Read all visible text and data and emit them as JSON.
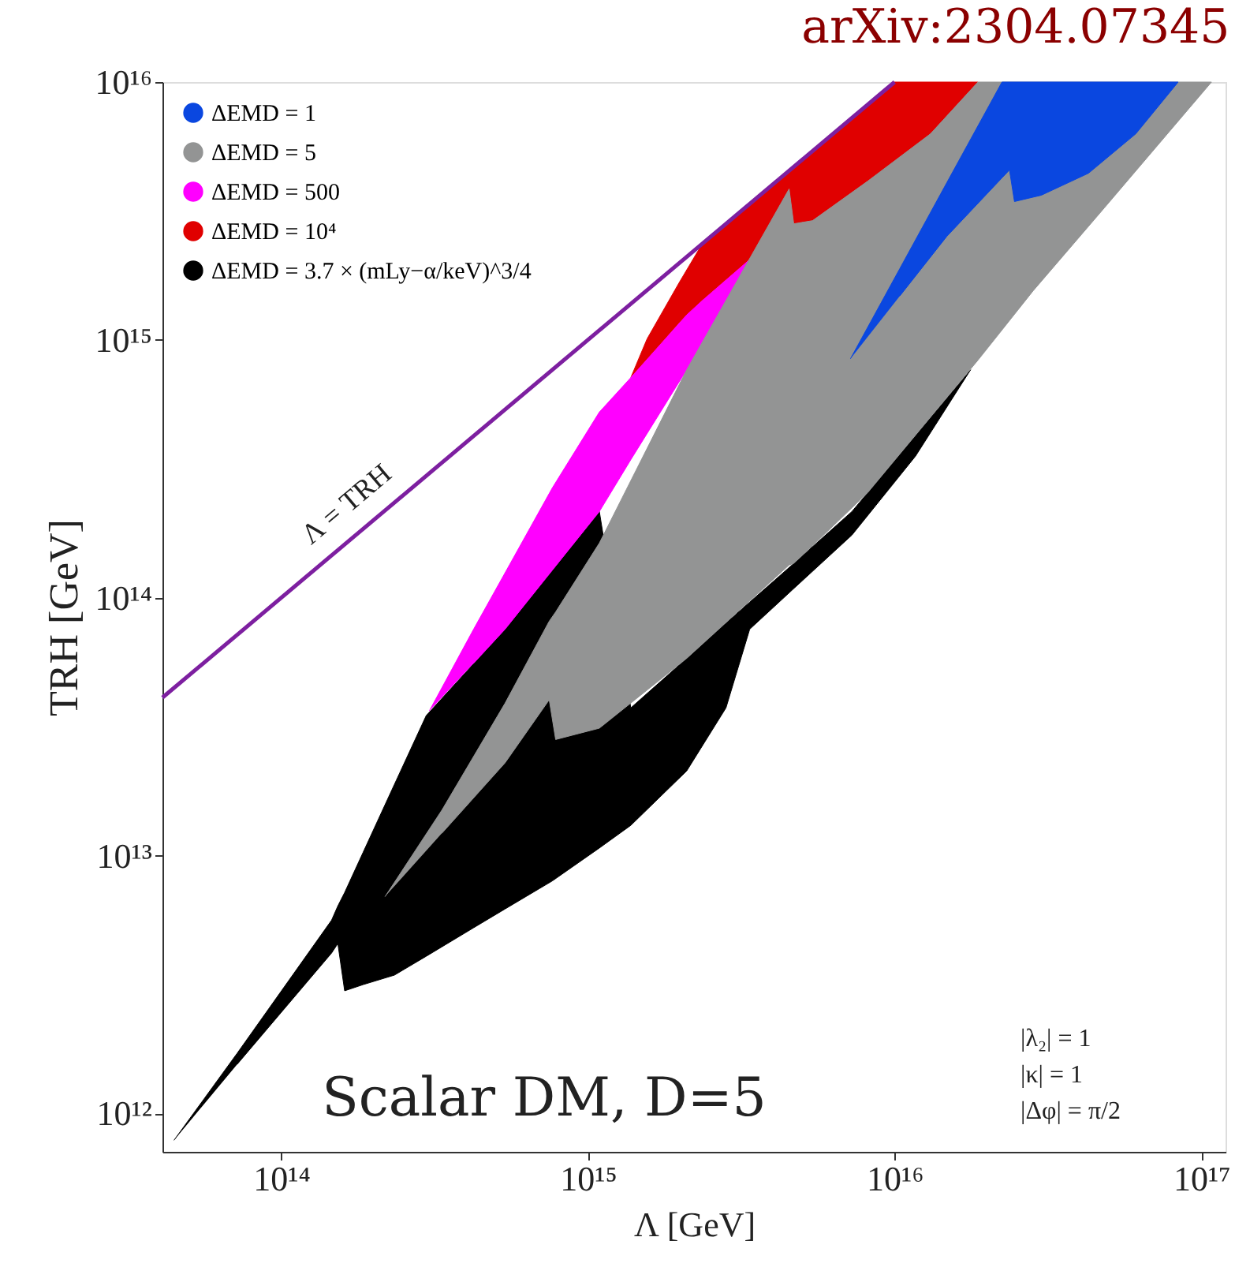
{
  "chart_data": {
    "type": "area",
    "title": "arXiv:2304.07345",
    "xlabel": "Λ [GeV]",
    "ylabel": "TRH [GeV]",
    "log": "xy",
    "grid": false,
    "legend": "top left",
    "xlim": [
      41000000000000.0,
      1.2e+17
    ],
    "ylim": [
      710000000000.0,
      1e+16
    ],
    "xticks": [
      {
        "value": 100000000000000.0,
        "label": "10¹⁴"
      },
      {
        "value": 1000000000000000.0,
        "label": "10¹⁵"
      },
      {
        "value": 1e+16,
        "label": "10¹⁶"
      },
      {
        "value": 1e+17,
        "label": "10¹⁷"
      }
    ],
    "yticks": [
      {
        "value": 1000000000000.0,
        "label": "10¹²"
      },
      {
        "value": 10000000000000.0,
        "label": "10¹³"
      },
      {
        "value": 100000000000000.0,
        "label": "10¹⁴"
      },
      {
        "value": 1000000000000000.0,
        "label": "10¹⁵"
      },
      {
        "value": 1e+16,
        "label": "10¹⁶"
      }
    ],
    "series": [
      {
        "name": "ΔEMD = 1",
        "color": "#0a47e0",
        "x": [
          7180000000000000.0,
          1.04e+16,
          1.48e+16,
          2.24e+16,
          8.41e+16,
          6.12e+16,
          4.29e+16,
          3.01e+16,
          2.46e+16,
          2.37e+16,
          2.24e+16,
          1.48e+16,
          1.04e+16
        ],
        "values": [
          845000000000000.0,
          1890000000000000.0,
          4070000000000000.0,
          1e+16,
          1e+16,
          6300000000000000.0,
          4430000000000000.0,
          3640000000000000.0,
          3440000000000000.0,
          4560000000000000.0,
          4250000000000000.0,
          2520000000000000.0,
          1480000000000000.0
        ]
      },
      {
        "name": "ΔEMD = 5",
        "color": "#939494",
        "x": [
          218000000000000.0,
          334000000000000.0,
          537000000000000.0,
          748000000000000.0,
          785000000000000.0,
          1090000000000000.0,
          2100000000000000.0,
          4530000000000000.0,
          4690000000000000.0,
          5400000000000000.0,
          8180000000000000.0,
          1.31e+16,
          1.87e+16,
          1.08e+17,
          4.83e+16,
          2.83e+16,
          1.87e+16,
          1.31e+16,
          8180000000000000.0,
          5400000000000000.0,
          4690000000000000.0,
          4530000000000000.0,
          2100000000000000.0,
          1090000000000000.0,
          785000000000000.0,
          748000000000000.0,
          537000000000000.0,
          334000000000000.0
        ],
        "values": [
          6930000000000.0,
          15000000000000.0,
          39000000000000.0,
          81100000000000.0,
          88100000000000.0,
          163000000000000.0,
          766000000000000.0,
          3850000000000000.0,
          2820000000000000.0,
          2900000000000000.0,
          4130000000000000.0,
          6300000000000000.0,
          1e+16,
          1e+16,
          3250000000000000.0,
          1550000000000000.0,
          834000000000000.0,
          502000000000000.0,
          256000000000000.0,
          159000000000000.0,
          136000000000000.0,
          134000000000000.0,
          58200000000000.0,
          31200000000000.0,
          28200000000000.0,
          40200000000000.0,
          22900000000000.0,
          12200000000000.0
        ]
      },
      {
        "name": "ΔEMD = 500",
        "color": "#ff00ff",
        "x": [
          304000000000000.0,
          424000000000000.0,
          537000000000000.0,
          766000000000000.0,
          1090000000000000.0,
          1380000000000000.0,
          2100000000000000.0,
          2360000000000000.0,
          3370000000000000.0,
          2360000000000000.0,
          2100000000000000.0,
          1380000000000000.0,
          1090000000000000.0,
          766000000000000.0,
          537000000000000.0,
          424000000000000.0
        ],
        "values": [
          36400000000000.0,
          75500000000000.0,
          125000000000000.0,
          267000000000000.0,
          525000000000000.0,
          714000000000000.0,
          1250000000000000.0,
          1420000000000000.0,
          2050000000000000.0,
          979000000000000.0,
          766000000000000.0,
          343000000000000.0,
          216000000000000.0,
          128000000000000.0,
          75500000000000.0,
          55700000000000.0
        ]
      },
      {
        "name": "ΔEMD = 10⁴",
        "color": "#e00000",
        "x": [
          1380000000000000.0,
          1560000000000000.0,
          1980000000000000.0,
          2360000000000000.0,
          1e+16,
          1.87e+16,
          1.31e+16,
          1e+16,
          8180000000000000.0,
          5400000000000000.0,
          4690000000000000.0,
          4530000000000000.0,
          3370000000000000.0,
          2360000000000000.0,
          1980000000000000.0,
          1560000000000000.0
        ],
        "values": [
          714000000000000.0,
          1010000000000000.0,
          1660000000000000.0,
          2360000000000000.0,
          1e+16,
          1e+16,
          6300000000000000.0,
          4830000000000000.0,
          4130000000000000.0,
          2900000000000000.0,
          2820000000000000.0,
          3850000000000000.0,
          2050000000000000.0,
          1420000000000000.0,
          1160000000000000.0,
          838000000000000.0
        ]
      },
      {
        "name": "ΔEMD = 3.7 × (mLy−α/keV)^3/4",
        "color": "#000000",
        "x": [
          44700000000000.0,
          71800000000000.0,
          146000000000000.0,
          153000000000000.0,
          161000000000000.0,
          185000000000000.0,
          234000000000000.0,
          297000000000000.0,
          424000000000000.0,
          537000000000000.0,
          766000000000000.0,
          1090000000000000.0,
          1380000000000000.0,
          2100000000000000.0,
          2820000000000000.0,
          3370000000000000.0,
          4630000000000000.0,
          7260000000000000.0,
          1.17e+16,
          1.77e+16,
          1.17e+16,
          7260000000000000.0,
          4630000000000000.0,
          3370000000000000.0,
          2820000000000000.0,
          2100000000000000.0,
          1380000000000000.0,
          1090000000000000.0,
          766000000000000.0,
          537000000000000.0,
          424000000000000.0,
          297000000000000.0,
          234000000000000.0,
          185000000000000.0,
          161000000000000.0,
          153000000000000.0,
          146000000000000.0,
          71800000000000.0
        ],
        "values": [
          787000000000.0,
          1710000000000.0,
          5620000000000.0,
          6380000000000.0,
          7190000000000.0,
          10300000000000.0,
          18900000000000.0,
          34900000000000.0,
          55500000000000.0,
          75500000000000.0,
          128000000000000.0,
          216000000000000.0,
          37400000000000.0,
          58200000000000.0,
          79800000000000.0,
          96200000000000.0,
          134000000000000.0,
          216000000000000.0,
          425000000000000.0,
          766000000000000.0,
          354000000000000.0,
          175000000000000.0,
          107000000000000.0,
          75500000000000.0,
          37400000000000.0,
          21300000000000.0,
          13100000000000.0,
          10700000000000.0,
          7980000000000.0,
          6210000000000.0,
          5250000000000.0,
          4070000000000.0,
          3440000000000.0,
          3160000000000.0,
          2990000000000.0,
          4560000000000.0,
          4190000000000.0,
          1550000000000.0
        ]
      },
      {
        "type": "line",
        "color": "#7d1fa0",
        "x": [
          41000000000000.0,
          1e+16
        ],
        "values": [
          41000000000000.0,
          1e+16
        ]
      }
    ],
    "annotations": [
      "Λ = TRH",
      "Scalar DM, D=5",
      "|λ₂| = 1",
      "|κ| = 1",
      "|Δφ| = π/2"
    ]
  }
}
